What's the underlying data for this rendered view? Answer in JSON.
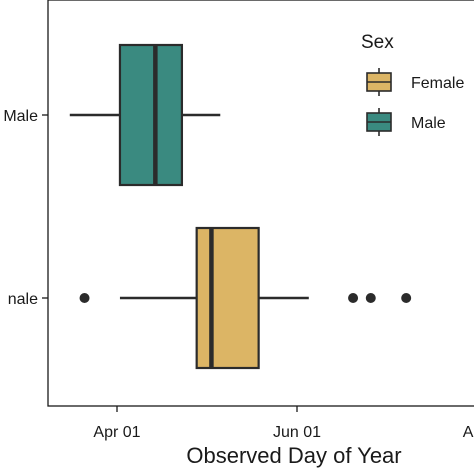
{
  "chart_data": {
    "type": "boxplot",
    "orientation": "horizontal",
    "xlabel": "Observed Day of Year",
    "ylabel": "",
    "x_ticks": [
      {
        "label": "Apr 01",
        "value": 91
      },
      {
        "label": "Jun 01",
        "value": 152
      },
      {
        "label": "Aug",
        "value": 213
      }
    ],
    "xlim": [
      68,
      213
    ],
    "categories": [
      "Male",
      "Female"
    ],
    "category_labels_visible": [
      "Male",
      "nale"
    ],
    "series": [
      {
        "name": "Male",
        "color": "#3a8a80",
        "whisker_low": 75,
        "q1": 92,
        "median": 104,
        "q3": 113,
        "whisker_high": 126,
        "outliers": []
      },
      {
        "name": "Female",
        "color": "#dcb565",
        "whisker_low": 92,
        "q1": 118,
        "median": 123,
        "q3": 139,
        "whisker_high": 156,
        "outliers": [
          80,
          171,
          177,
          189
        ]
      }
    ],
    "legend": {
      "title": "Sex",
      "position": "top-right",
      "entries": [
        {
          "label": "Female",
          "color": "#dcb565"
        },
        {
          "label": "Male",
          "color": "#3a8a80"
        }
      ]
    },
    "grid": false
  }
}
